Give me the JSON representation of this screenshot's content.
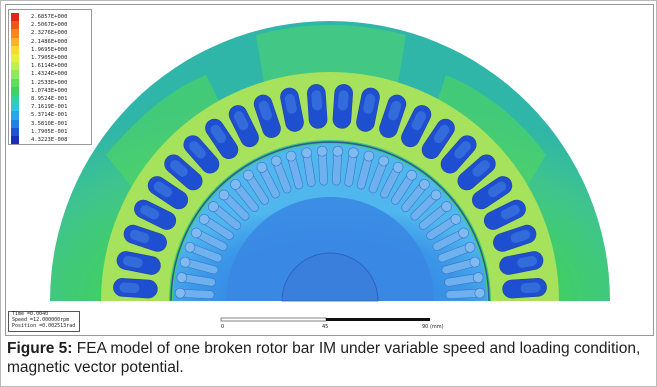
{
  "legend": {
    "values": [
      "2.6857E+000",
      "2.5067E+000",
      "2.3276E+000",
      "2.1486E+000",
      "1.9695E+000",
      "1.7905E+000",
      "1.6114E+000",
      "1.4324E+000",
      "1.2533E+000",
      "1.0743E+000",
      "8.9524E-001",
      "7.1619E-001",
      "5.3714E-001",
      "3.5810E-001",
      "1.7905E-001",
      "4.3223E-008"
    ],
    "colors": [
      "#e8231c",
      "#f0561b",
      "#f6861e",
      "#fab327",
      "#f7dc2c",
      "#e4f03a",
      "#bdf051",
      "#8fe860",
      "#62dd5a",
      "#3ed460",
      "#2fd3a0",
      "#2cc8d8",
      "#27a7e6",
      "#2380e4",
      "#1d55d2",
      "#1a2fb8"
    ]
  },
  "info": {
    "time": "Time   =0.0040",
    "speed": "Speed  =12.000000rpm",
    "position": "Position =0.002513rad"
  },
  "scale": {
    "start": "0",
    "mid": "45",
    "end": "90 (mm)"
  },
  "caption": {
    "label": "Figure 5:",
    "text": " FEA model of one broken rotor bar IM under variable speed and loading condition, magnetic vector potential."
  },
  "field_colors": {
    "stator_back": "#3bc77f",
    "teeth": "#97e05a",
    "stator_slot": "#1d4fd0",
    "rotor_core": "#3b8fe6",
    "rotor_bar": "#65a8ee",
    "shaft": "#3d7fe0",
    "airgap": "#2f5d9a"
  }
}
